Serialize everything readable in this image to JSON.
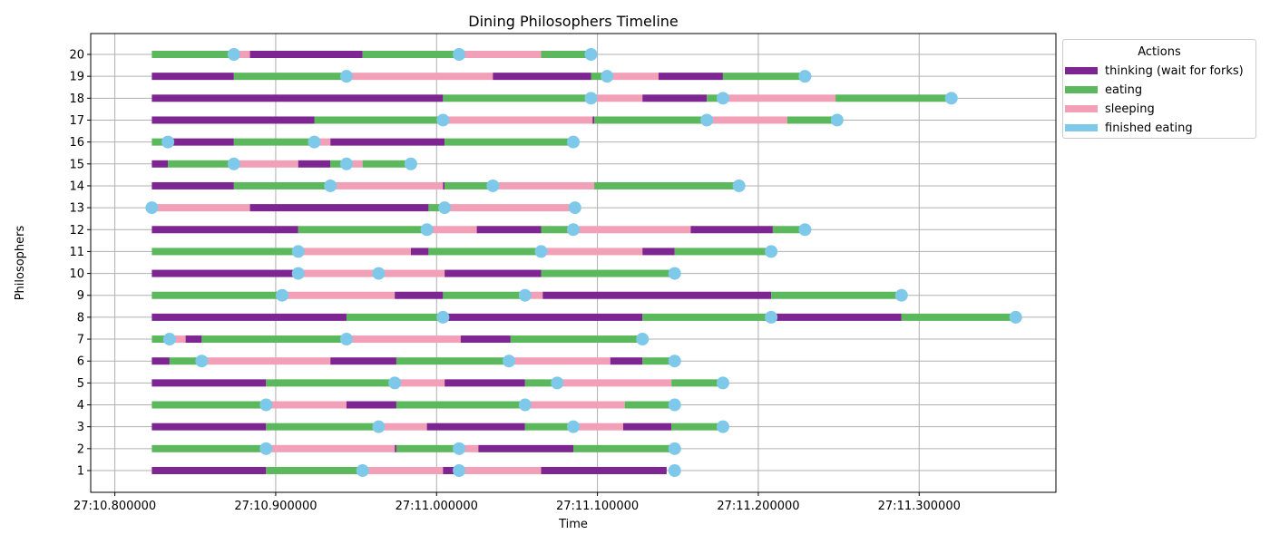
{
  "chart_data": {
    "type": "timeline",
    "title": "Dining Philosophers Timeline",
    "xlabel": "Time",
    "ylabel": "Philosophers",
    "xlim": [
      "27:10.785",
      "27:11.385"
    ],
    "x_ticks": [
      "27:10.800000",
      "27:10.900000",
      "27:11.000000",
      "27:11.100000",
      "27:11.200000",
      "27:11.300000"
    ],
    "y_ticks": [
      "1",
      "2",
      "3",
      "4",
      "5",
      "6",
      "7",
      "8",
      "9",
      "10",
      "11",
      "12",
      "13",
      "14",
      "15",
      "16",
      "17",
      "18",
      "19",
      "20"
    ],
    "grid": true,
    "legend": {
      "title": "Actions",
      "placement": "outside-top-right",
      "entries": [
        {
          "key": "thinking",
          "label": "thinking (wait for forks)",
          "color": "#7d2590"
        },
        {
          "key": "eating",
          "label": "eating",
          "color": "#5cb85c"
        },
        {
          "key": "sleeping",
          "label": "sleeping",
          "color": "#f2a0b8"
        },
        {
          "key": "finished",
          "label": "finished eating",
          "color": "#7ec8ea"
        }
      ]
    },
    "time_unit": "seconds after 27:10",
    "philosophers": [
      {
        "id": 1,
        "segments": [
          [
            "thinking",
            10.823,
            10.894
          ],
          [
            "eating",
            10.894,
            10.954
          ],
          [
            "sleeping",
            10.954,
            11.004
          ],
          [
            "thinking",
            11.004,
            11.014
          ],
          [
            "sleeping",
            11.014,
            11.065
          ],
          [
            "thinking",
            11.065,
            11.143
          ]
        ],
        "finished": [
          10.954,
          11.014,
          11.148
        ]
      },
      {
        "id": 2,
        "segments": [
          [
            "eating",
            10.823,
            10.894
          ],
          [
            "sleeping",
            10.894,
            10.974
          ],
          [
            "thinking",
            10.974,
            10.975
          ],
          [
            "eating",
            10.975,
            11.014
          ],
          [
            "sleeping",
            11.014,
            11.026
          ],
          [
            "thinking",
            11.026,
            11.085
          ],
          [
            "eating",
            11.085,
            11.148
          ]
        ],
        "finished": [
          10.894,
          11.014,
          11.148
        ]
      },
      {
        "id": 3,
        "segments": [
          [
            "thinking",
            10.823,
            10.894
          ],
          [
            "eating",
            10.894,
            10.964
          ],
          [
            "sleeping",
            10.964,
            10.994
          ],
          [
            "thinking",
            10.994,
            11.055
          ],
          [
            "eating",
            11.055,
            11.085
          ],
          [
            "sleeping",
            11.085,
            11.116
          ],
          [
            "thinking",
            11.116,
            11.146
          ],
          [
            "eating",
            11.146,
            11.178
          ]
        ],
        "finished": [
          10.964,
          11.085,
          11.178
        ]
      },
      {
        "id": 4,
        "segments": [
          [
            "eating",
            10.823,
            10.894
          ],
          [
            "sleeping",
            10.894,
            10.944
          ],
          [
            "thinking",
            10.944,
            10.975
          ],
          [
            "eating",
            10.975,
            11.055
          ],
          [
            "sleeping",
            11.055,
            11.117
          ],
          [
            "eating",
            11.117,
            11.148
          ]
        ],
        "finished": [
          10.894,
          11.055,
          11.148
        ]
      },
      {
        "id": 5,
        "segments": [
          [
            "thinking",
            10.823,
            10.894
          ],
          [
            "eating",
            10.894,
            10.974
          ],
          [
            "sleeping",
            10.974,
            11.005
          ],
          [
            "thinking",
            11.005,
            11.055
          ],
          [
            "eating",
            11.055,
            11.075
          ],
          [
            "sleeping",
            11.075,
            11.146
          ],
          [
            "eating",
            11.146,
            11.178
          ]
        ],
        "finished": [
          10.974,
          11.075,
          11.178
        ]
      },
      {
        "id": 6,
        "segments": [
          [
            "thinking",
            10.823,
            10.834
          ],
          [
            "eating",
            10.834,
            10.854
          ],
          [
            "sleeping",
            10.854,
            10.934
          ],
          [
            "thinking",
            10.934,
            10.975
          ],
          [
            "eating",
            10.975,
            11.045
          ],
          [
            "sleeping",
            11.045,
            11.108
          ],
          [
            "thinking",
            11.108,
            11.128
          ],
          [
            "eating",
            11.128,
            11.148
          ]
        ],
        "finished": [
          10.854,
          11.045,
          11.148
        ]
      },
      {
        "id": 7,
        "segments": [
          [
            "eating",
            10.823,
            10.834
          ],
          [
            "sleeping",
            10.834,
            10.844
          ],
          [
            "thinking",
            10.844,
            10.854
          ],
          [
            "eating",
            10.854,
            10.944
          ],
          [
            "sleeping",
            10.944,
            11.015
          ],
          [
            "thinking",
            11.015,
            11.046
          ],
          [
            "eating",
            11.046,
            11.128
          ]
        ],
        "finished": [
          10.834,
          10.944,
          11.128
        ]
      },
      {
        "id": 8,
        "segments": [
          [
            "thinking",
            10.823,
            10.944
          ],
          [
            "eating",
            10.944,
            11.004
          ],
          [
            "thinking",
            11.004,
            11.128
          ],
          [
            "eating",
            11.128,
            11.208
          ],
          [
            "thinking",
            11.208,
            11.289
          ],
          [
            "eating",
            11.289,
            11.36
          ]
        ],
        "finished": [
          11.004,
          11.208,
          11.36
        ]
      },
      {
        "id": 9,
        "segments": [
          [
            "eating",
            10.823,
            10.904
          ],
          [
            "sleeping",
            10.904,
            10.974
          ],
          [
            "thinking",
            10.974,
            11.004
          ],
          [
            "eating",
            11.004,
            11.055
          ],
          [
            "sleeping",
            11.055,
            11.066
          ],
          [
            "thinking",
            11.066,
            11.208
          ],
          [
            "eating",
            11.208,
            11.289
          ]
        ],
        "finished": [
          10.904,
          11.055,
          11.289
        ]
      },
      {
        "id": 10,
        "segments": [
          [
            "thinking",
            10.823,
            10.914
          ],
          [
            "sleeping",
            10.914,
            11.005
          ],
          [
            "thinking",
            11.005,
            11.065
          ],
          [
            "eating",
            11.065,
            11.148
          ]
        ],
        "finished": [
          10.914,
          10.964,
          11.148
        ]
      },
      {
        "id": 11,
        "segments": [
          [
            "eating",
            10.823,
            10.914
          ],
          [
            "sleeping",
            10.914,
            10.984
          ],
          [
            "thinking",
            10.984,
            10.995
          ],
          [
            "eating",
            10.995,
            11.065
          ],
          [
            "sleeping",
            11.065,
            11.128
          ],
          [
            "thinking",
            11.128,
            11.148
          ],
          [
            "eating",
            11.148,
            11.208
          ]
        ],
        "finished": [
          10.914,
          11.065,
          11.208
        ]
      },
      {
        "id": 12,
        "segments": [
          [
            "thinking",
            10.823,
            10.914
          ],
          [
            "eating",
            10.914,
            10.994
          ],
          [
            "sleeping",
            10.994,
            11.025
          ],
          [
            "thinking",
            11.025,
            11.065
          ],
          [
            "eating",
            11.065,
            11.085
          ],
          [
            "sleeping",
            11.085,
            11.158
          ],
          [
            "thinking",
            11.158,
            11.209
          ],
          [
            "eating",
            11.209,
            11.229
          ]
        ],
        "finished": [
          10.994,
          11.085,
          11.229
        ]
      },
      {
        "id": 13,
        "segments": [
          [
            "sleeping",
            10.823,
            10.884
          ],
          [
            "thinking",
            10.884,
            10.995
          ],
          [
            "eating",
            10.995,
            11.005
          ],
          [
            "sleeping",
            11.005,
            11.086
          ]
        ],
        "finished": [
          10.823,
          11.005,
          11.086
        ]
      },
      {
        "id": 14,
        "segments": [
          [
            "thinking",
            10.823,
            10.874
          ],
          [
            "eating",
            10.874,
            10.934
          ],
          [
            "sleeping",
            10.934,
            11.004
          ],
          [
            "thinking",
            11.004,
            11.005
          ],
          [
            "eating",
            11.005,
            11.035
          ],
          [
            "sleeping",
            11.035,
            11.098
          ],
          [
            "eating",
            11.098,
            11.188
          ]
        ],
        "finished": [
          10.934,
          11.035,
          11.188
        ]
      },
      {
        "id": 15,
        "segments": [
          [
            "thinking",
            10.823,
            10.833
          ],
          [
            "eating",
            10.833,
            10.874
          ],
          [
            "sleeping",
            10.874,
            10.914
          ],
          [
            "thinking",
            10.914,
            10.934
          ],
          [
            "eating",
            10.934,
            10.944
          ],
          [
            "sleeping",
            10.944,
            10.954
          ],
          [
            "eating",
            10.954,
            10.984
          ]
        ],
        "finished": [
          10.874,
          10.944,
          10.984
        ]
      },
      {
        "id": 16,
        "segments": [
          [
            "eating",
            10.823,
            10.833
          ],
          [
            "thinking",
            10.833,
            10.874
          ],
          [
            "eating",
            10.874,
            10.924
          ],
          [
            "sleeping",
            10.924,
            10.934
          ],
          [
            "thinking",
            10.934,
            11.005
          ],
          [
            "eating",
            11.005,
            11.085
          ]
        ],
        "finished": [
          10.833,
          10.924,
          11.085
        ]
      },
      {
        "id": 17,
        "segments": [
          [
            "thinking",
            10.823,
            10.924
          ],
          [
            "eating",
            10.924,
            11.004
          ],
          [
            "sleeping",
            11.004,
            11.097
          ],
          [
            "thinking",
            11.097,
            11.098
          ],
          [
            "eating",
            11.098,
            11.168
          ],
          [
            "sleeping",
            11.168,
            11.218
          ],
          [
            "eating",
            11.218,
            11.249
          ]
        ],
        "finished": [
          11.004,
          11.168,
          11.249
        ]
      },
      {
        "id": 18,
        "segments": [
          [
            "thinking",
            10.823,
            11.004
          ],
          [
            "eating",
            11.004,
            11.096
          ],
          [
            "sleeping",
            11.096,
            11.128
          ],
          [
            "thinking",
            11.128,
            11.168
          ],
          [
            "eating",
            11.168,
            11.178
          ],
          [
            "sleeping",
            11.178,
            11.248
          ],
          [
            "eating",
            11.248,
            11.32
          ]
        ],
        "finished": [
          11.096,
          11.178,
          11.32
        ]
      },
      {
        "id": 19,
        "segments": [
          [
            "thinking",
            10.823,
            10.874
          ],
          [
            "eating",
            10.874,
            10.944
          ],
          [
            "sleeping",
            10.944,
            11.035
          ],
          [
            "thinking",
            11.035,
            11.096
          ],
          [
            "eating",
            11.096,
            11.106
          ],
          [
            "sleeping",
            11.106,
            11.138
          ],
          [
            "thinking",
            11.138,
            11.178
          ],
          [
            "eating",
            11.178,
            11.229
          ]
        ],
        "finished": [
          10.944,
          11.106,
          11.229
        ]
      },
      {
        "id": 20,
        "segments": [
          [
            "eating",
            10.823,
            10.874
          ],
          [
            "sleeping",
            10.874,
            10.884
          ],
          [
            "thinking",
            10.884,
            10.954
          ],
          [
            "eating",
            10.954,
            11.014
          ],
          [
            "sleeping",
            11.014,
            11.065
          ],
          [
            "eating",
            11.065,
            11.096
          ]
        ],
        "finished": [
          10.874,
          11.014,
          11.096
        ]
      }
    ]
  }
}
